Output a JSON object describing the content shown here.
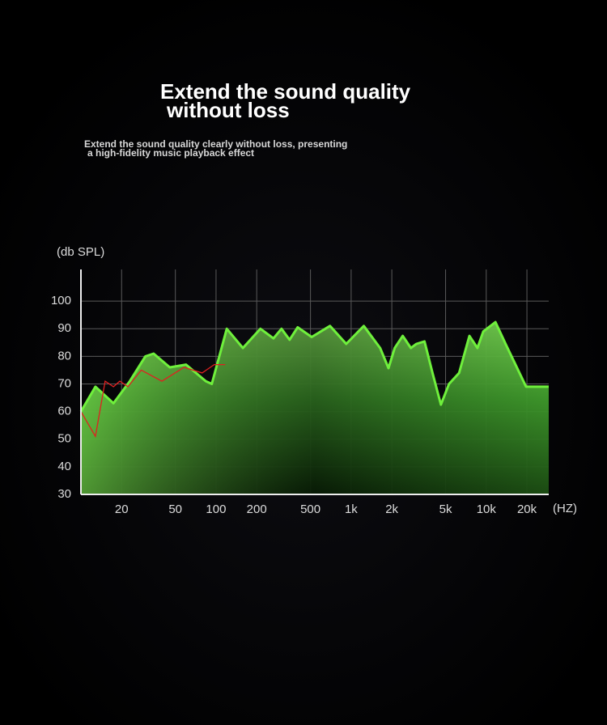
{
  "chart_data": {
    "type": "area",
    "log_x": true,
    "grid": true,
    "title": [
      "Extend the sound quality",
      "without loss"
    ],
    "subtitle": [
      "Extend the sound quality clearly without loss, presenting",
      "a high-fidelity music playback effect"
    ],
    "y_label": "(db SPL)",
    "x_label": "(HZ)",
    "xlim": [
      10,
      29000
    ],
    "ylim": [
      30,
      110
    ],
    "xticks": [
      20,
      50,
      100,
      200,
      500,
      {
        "value": 1000,
        "label": "1k"
      },
      {
        "value": 2000,
        "label": "2k"
      },
      {
        "value": 5000,
        "label": "5k"
      },
      {
        "value": 10000,
        "label": "10k"
      },
      {
        "value": 20000,
        "label": "20k"
      }
    ],
    "yticks": [
      30,
      40,
      50,
      60,
      70,
      80,
      90,
      100
    ],
    "series": [
      {
        "color": "#6ff03c",
        "x": [
          10,
          12.8,
          17.4,
          23,
          30,
          34.5,
          45.5,
          60,
          84,
          93,
          120,
          158,
          213,
          266,
          305,
          350,
          402,
          510,
          697,
          920,
          1240,
          1640,
          1890,
          2100,
          2410,
          2770,
          3040,
          3490,
          4000,
          4620,
          5300,
          6300,
          7500,
          8600,
          9500,
          11700,
          13900,
          19700,
          29000
        ],
        "values": [
          60,
          69,
          63,
          71,
          80,
          81,
          76,
          77,
          71,
          70,
          90,
          83,
          90,
          86.5,
          90,
          86,
          90.5,
          87,
          91,
          84.5,
          91,
          83,
          75.7,
          83,
          87.4,
          83,
          84.5,
          85.4,
          74,
          62.5,
          70,
          74,
          87.4,
          83,
          89,
          92.4,
          84.5,
          69,
          69
        ]
      },
      {
        "color": "#e02020",
        "x": [
          10,
          12.8,
          15.1,
          17.4,
          19.4,
          22.3,
          28,
          39.7,
          58,
          79,
          97,
          117
        ],
        "values": [
          60,
          51,
          71,
          69,
          71,
          69,
          75,
          71,
          76,
          74,
          77,
          77
        ]
      }
    ]
  }
}
